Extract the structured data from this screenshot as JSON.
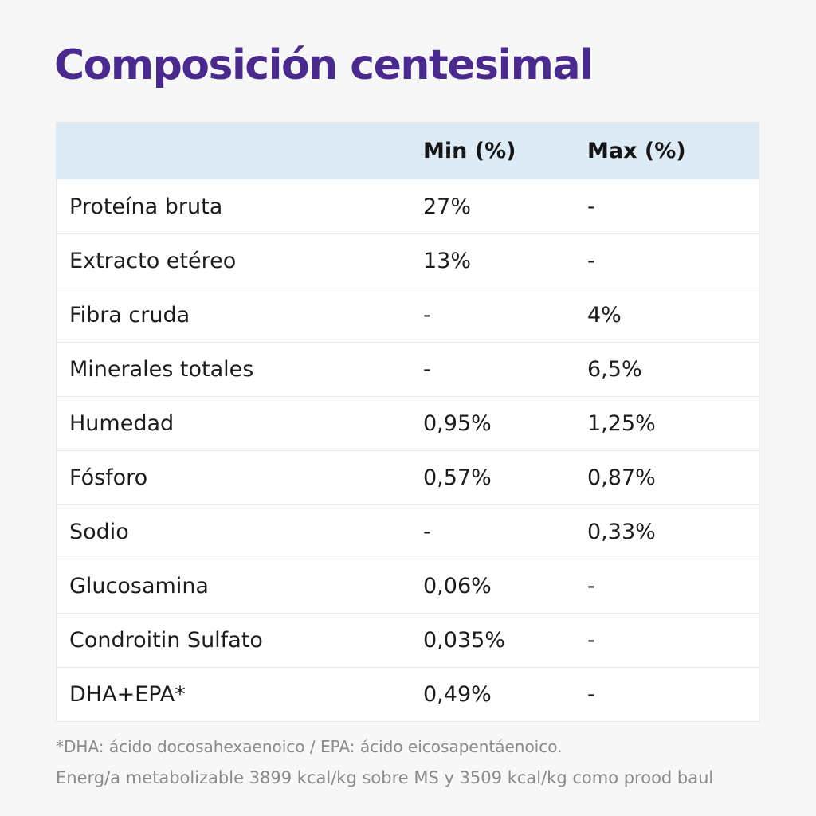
{
  "title": "Composición centesimal",
  "table": {
    "headers": {
      "name": "",
      "min": "Min (%)",
      "max": "Max (%)"
    },
    "rows": [
      {
        "name": "Proteína bruta",
        "min": "27%",
        "max": "-"
      },
      {
        "name": "Extracto etéreo",
        "min": "13%",
        "max": "-"
      },
      {
        "name": "Fibra cruda",
        "min": "-",
        "max": "4%"
      },
      {
        "name": "Minerales totales",
        "min": "-",
        "max": "6,5%"
      },
      {
        "name": "Humedad",
        "min": "0,95%",
        "max": "1,25%"
      },
      {
        "name": "Fósforo",
        "min": "0,57%",
        "max": "0,87%"
      },
      {
        "name": "Sodio",
        "min": "-",
        "max": "0,33%"
      },
      {
        "name": "Glucosamina",
        "min": "0,06%",
        "max": "-"
      },
      {
        "name": "Condroitin Sulfato",
        "min": "0,035%",
        "max": "-"
      },
      {
        "name": "DHA+EPA*",
        "min": "0,49%",
        "max": "-"
      }
    ]
  },
  "footnotes": {
    "dha_epa": "*DHA: ácido docosahexaenoico / EPA: ácido eicosapentáenoico.",
    "energy": "Energ/a metabolizable 3899 kcal/kg sobre MS y 3509 kcal/kg como prood baul"
  },
  "colors": {
    "title": "#4a2a8c",
    "header_bg": "#dcebf6",
    "row_bg": "#ffffff",
    "footnote": "#8a8a8a"
  }
}
